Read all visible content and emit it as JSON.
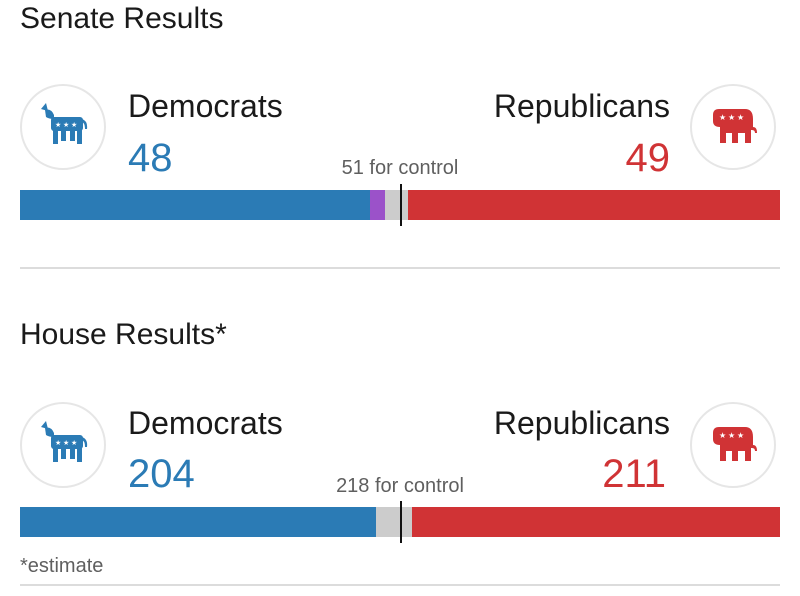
{
  "colors": {
    "dem": "#2b7bb5",
    "rep": "#d03335",
    "other": "#9b52c9",
    "undecided": "#cccccc"
  },
  "senate": {
    "title": "Senate Results",
    "dem_label": "Democrats",
    "rep_label": "Republicans",
    "dem_seats": "48",
    "rep_seats": "49",
    "control_label": "51 for control"
  },
  "house": {
    "title": "House Results*",
    "dem_label": "Democrats",
    "rep_label": "Republicans",
    "dem_seats": "204",
    "rep_seats": "211",
    "control_label": "218 for control"
  },
  "footnote": "*estimate",
  "chart_data": [
    {
      "type": "bar",
      "title": "Senate Results",
      "total": 100,
      "control_threshold": 51,
      "series": [
        {
          "name": "Democrats",
          "value": 48
        },
        {
          "name": "Other",
          "value": 2
        },
        {
          "name": "Undecided",
          "value": 1
        },
        {
          "name": "Republicans",
          "value": 49
        }
      ]
    },
    {
      "type": "bar",
      "title": "House Results*",
      "total": 435,
      "control_threshold": 218,
      "series": [
        {
          "name": "Democrats",
          "value": 204
        },
        {
          "name": "Undecided",
          "value": 20
        },
        {
          "name": "Republicans",
          "value": 211
        }
      ]
    }
  ]
}
